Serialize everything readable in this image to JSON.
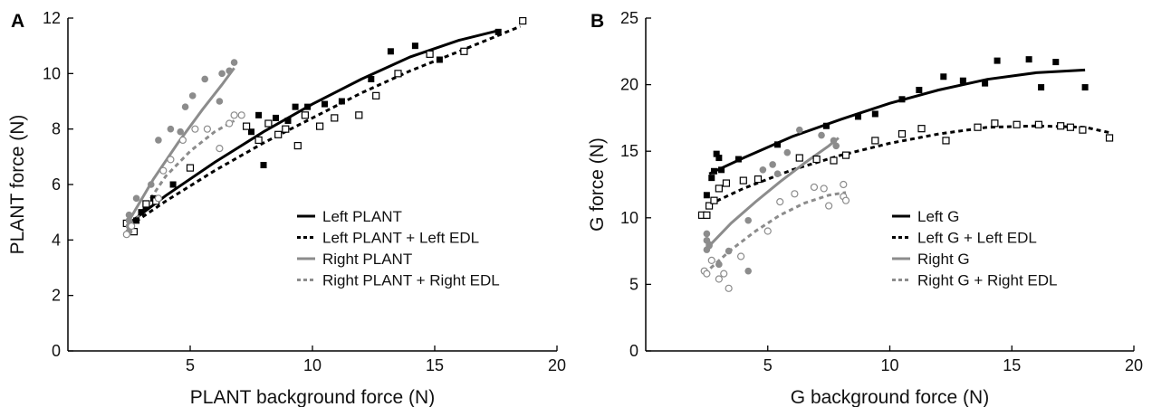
{
  "chart_data": [
    {
      "type": "scatter",
      "panel_label": "A",
      "xlabel": "PLANT background force (N)",
      "ylabel": "PLANT force (N)",
      "xlim": [
        0,
        20
      ],
      "ylim": [
        0,
        12
      ],
      "xticks": [
        "5",
        "10",
        "15",
        "20"
      ],
      "yticks": [
        "0",
        "2",
        "4",
        "6",
        "8",
        "10",
        "12"
      ],
      "legend_position": "lower-right",
      "series": [
        {
          "name": "Left PLANT",
          "color": "#000000",
          "line_style": "solid",
          "marker": "filled-square",
          "points": [
            [
              2.6,
              4.4
            ],
            [
              2.8,
              4.7
            ],
            [
              3.0,
              5.0
            ],
            [
              3.2,
              5.2
            ],
            [
              3.5,
              5.5
            ],
            [
              4.3,
              6.0
            ],
            [
              7.5,
              7.9
            ],
            [
              7.8,
              8.5
            ],
            [
              8.0,
              6.7
            ],
            [
              8.5,
              8.4
            ],
            [
              9.0,
              8.3
            ],
            [
              9.3,
              8.8
            ],
            [
              9.8,
              8.8
            ],
            [
              10.5,
              8.9
            ],
            [
              11.2,
              9.0
            ],
            [
              12.4,
              9.8
            ],
            [
              13.2,
              10.8
            ],
            [
              14.2,
              11.0
            ],
            [
              15.2,
              10.5
            ],
            [
              17.6,
              11.5
            ]
          ],
          "fit_curve": [
            [
              2.5,
              4.6
            ],
            [
              4.0,
              5.6
            ],
            [
              6.0,
              6.8
            ],
            [
              8.0,
              7.9
            ],
            [
              10.0,
              8.9
            ],
            [
              12.0,
              9.8
            ],
            [
              14.0,
              10.6
            ],
            [
              16.0,
              11.2
            ],
            [
              17.6,
              11.55
            ]
          ]
        },
        {
          "name": "Left PLANT + Left EDL",
          "color": "#000000",
          "line_style": "dashed",
          "marker": "open-square",
          "points": [
            [
              2.4,
              4.6
            ],
            [
              2.7,
              4.3
            ],
            [
              3.2,
              5.3
            ],
            [
              3.6,
              5.4
            ],
            [
              5.0,
              6.6
            ],
            [
              7.3,
              8.1
            ],
            [
              7.8,
              7.6
            ],
            [
              8.2,
              8.2
            ],
            [
              8.6,
              7.8
            ],
            [
              8.9,
              8.0
            ],
            [
              9.4,
              7.4
            ],
            [
              9.7,
              8.5
            ],
            [
              10.3,
              8.1
            ],
            [
              10.9,
              8.4
            ],
            [
              11.9,
              8.5
            ],
            [
              12.6,
              9.2
            ],
            [
              13.5,
              10.0
            ],
            [
              14.8,
              10.7
            ],
            [
              16.2,
              10.8
            ],
            [
              18.6,
              11.9
            ]
          ],
          "fit_curve": [
            [
              2.5,
              4.5
            ],
            [
              4.0,
              5.4
            ],
            [
              6.0,
              6.5
            ],
            [
              8.0,
              7.5
            ],
            [
              10.0,
              8.4
            ],
            [
              12.0,
              9.3
            ],
            [
              14.0,
              10.1
            ],
            [
              16.0,
              10.8
            ],
            [
              18.5,
              11.7
            ]
          ]
        },
        {
          "name": "Right PLANT",
          "color": "#8c8c8c",
          "line_style": "solid",
          "marker": "filled-circle",
          "points": [
            [
              2.5,
              4.9
            ],
            [
              2.5,
              4.7
            ],
            [
              2.5,
              4.5
            ],
            [
              2.5,
              4.3
            ],
            [
              2.8,
              5.5
            ],
            [
              3.4,
              6.0
            ],
            [
              3.7,
              7.6
            ],
            [
              4.2,
              8.0
            ],
            [
              4.6,
              7.9
            ],
            [
              4.8,
              8.8
            ],
            [
              5.1,
              9.2
            ],
            [
              5.6,
              9.8
            ],
            [
              6.2,
              9.0
            ],
            [
              6.3,
              10.0
            ],
            [
              6.6,
              10.1
            ],
            [
              6.8,
              10.4
            ]
          ],
          "fit_curve": [
            [
              2.5,
              4.7
            ],
            [
              3.5,
              6.2
            ],
            [
              4.5,
              7.5
            ],
            [
              5.5,
              8.7
            ],
            [
              6.3,
              9.6
            ],
            [
              6.8,
              10.2
            ]
          ]
        },
        {
          "name": "Right PLANT + Right EDL",
          "color": "#8c8c8c",
          "line_style": "dashed",
          "marker": "open-circle",
          "points": [
            [
              2.4,
              4.2
            ],
            [
              2.6,
              4.5
            ],
            [
              3.7,
              5.5
            ],
            [
              3.9,
              6.5
            ],
            [
              4.2,
              6.9
            ],
            [
              4.7,
              7.6
            ],
            [
              5.2,
              8.0
            ],
            [
              5.7,
              8.0
            ],
            [
              6.2,
              7.3
            ],
            [
              6.6,
              8.2
            ],
            [
              6.8,
              8.5
            ],
            [
              7.1,
              8.5
            ]
          ],
          "fit_curve": [
            [
              2.4,
              4.3
            ],
            [
              3.0,
              5.0
            ],
            [
              4.0,
              6.3
            ],
            [
              5.0,
              7.2
            ],
            [
              6.0,
              7.9
            ],
            [
              6.8,
              8.3
            ]
          ]
        }
      ]
    },
    {
      "type": "scatter",
      "panel_label": "B",
      "xlabel": "G background force (N)",
      "ylabel": "G force (N)",
      "xlim": [
        0,
        20
      ],
      "ylim": [
        0,
        25
      ],
      "xticks": [
        "5",
        "10",
        "15",
        "20"
      ],
      "yticks": [
        "0",
        "5",
        "10",
        "15",
        "20",
        "25"
      ],
      "legend_position": "lower-right",
      "series": [
        {
          "name": "Left G",
          "color": "#000000",
          "line_style": "solid",
          "marker": "filled-square",
          "points": [
            [
              2.5,
              11.7
            ],
            [
              2.7,
              13.0
            ],
            [
              2.8,
              13.5
            ],
            [
              2.9,
              14.8
            ],
            [
              3.0,
              14.5
            ],
            [
              3.1,
              13.6
            ],
            [
              3.8,
              14.4
            ],
            [
              5.4,
              15.5
            ],
            [
              7.4,
              16.9
            ],
            [
              8.7,
              17.6
            ],
            [
              9.4,
              17.8
            ],
            [
              10.5,
              18.9
            ],
            [
              11.2,
              19.6
            ],
            [
              12.2,
              20.6
            ],
            [
              13.0,
              20.3
            ],
            [
              13.9,
              20.1
            ],
            [
              14.4,
              21.8
            ],
            [
              15.7,
              21.9
            ],
            [
              16.2,
              19.8
            ],
            [
              16.8,
              21.7
            ],
            [
              18.0,
              19.8
            ]
          ],
          "fit_curve": [
            [
              2.6,
              13.3
            ],
            [
              4.0,
              14.5
            ],
            [
              6.0,
              16.1
            ],
            [
              8.0,
              17.4
            ],
            [
              10.0,
              18.6
            ],
            [
              12.0,
              19.6
            ],
            [
              14.0,
              20.4
            ],
            [
              16.0,
              20.9
            ],
            [
              18.0,
              21.1
            ]
          ]
        },
        {
          "name": "Left G + Left EDL",
          "color": "#000000",
          "line_style": "dashed",
          "marker": "open-square",
          "points": [
            [
              2.3,
              10.2
            ],
            [
              2.5,
              10.2
            ],
            [
              2.6,
              10.9
            ],
            [
              2.8,
              11.3
            ],
            [
              3.0,
              12.2
            ],
            [
              3.3,
              12.6
            ],
            [
              4.0,
              12.8
            ],
            [
              4.6,
              12.9
            ],
            [
              6.3,
              14.5
            ],
            [
              7.0,
              14.4
            ],
            [
              7.7,
              14.3
            ],
            [
              8.2,
              14.7
            ],
            [
              9.4,
              15.8
            ],
            [
              10.5,
              16.3
            ],
            [
              11.3,
              16.7
            ],
            [
              12.3,
              15.8
            ],
            [
              13.6,
              16.8
            ],
            [
              14.3,
              17.1
            ],
            [
              15.2,
              17.0
            ],
            [
              16.1,
              17.0
            ],
            [
              17.0,
              16.9
            ],
            [
              17.4,
              16.8
            ],
            [
              17.9,
              16.6
            ],
            [
              19.0,
              16.0
            ]
          ],
          "fit_curve": [
            [
              2.6,
              11.0
            ],
            [
              4.0,
              12.2
            ],
            [
              6.0,
              13.6
            ],
            [
              8.0,
              14.7
            ],
            [
              10.0,
              15.6
            ],
            [
              12.0,
              16.3
            ],
            [
              14.0,
              16.8
            ],
            [
              16.0,
              16.9
            ],
            [
              18.0,
              16.8
            ],
            [
              19.0,
              16.4
            ]
          ]
        },
        {
          "name": "Right G",
          "color": "#8c8c8c",
          "line_style": "solid",
          "marker": "filled-circle",
          "points": [
            [
              2.5,
              8.8
            ],
            [
              2.5,
              8.3
            ],
            [
              2.5,
              7.6
            ],
            [
              2.6,
              8.0
            ],
            [
              2.6,
              7.9
            ],
            [
              3.0,
              6.5
            ],
            [
              3.4,
              7.5
            ],
            [
              4.2,
              9.8
            ],
            [
              4.2,
              6.0
            ],
            [
              4.8,
              13.6
            ],
            [
              5.2,
              14.0
            ],
            [
              5.4,
              13.3
            ],
            [
              5.8,
              14.9
            ],
            [
              6.3,
              16.6
            ],
            [
              7.2,
              16.2
            ],
            [
              7.7,
              15.8
            ],
            [
              7.8,
              15.4
            ]
          ],
          "fit_curve": [
            [
              2.5,
              7.7
            ],
            [
              3.5,
              9.6
            ],
            [
              4.5,
              11.2
            ],
            [
              5.5,
              12.7
            ],
            [
              6.5,
              14.1
            ],
            [
              7.5,
              15.4
            ],
            [
              7.9,
              16.0
            ]
          ]
        },
        {
          "name": "Right G + Right EDL",
          "color": "#8c8c8c",
          "line_style": "dashed",
          "marker": "open-circle",
          "points": [
            [
              2.4,
              6.0
            ],
            [
              2.5,
              5.8
            ],
            [
              2.7,
              6.8
            ],
            [
              3.0,
              5.4
            ],
            [
              3.2,
              5.8
            ],
            [
              3.4,
              4.7
            ],
            [
              3.9,
              7.1
            ],
            [
              5.0,
              9.0
            ],
            [
              5.5,
              11.2
            ],
            [
              6.1,
              11.8
            ],
            [
              6.9,
              12.3
            ],
            [
              7.3,
              12.2
            ],
            [
              7.5,
              10.9
            ],
            [
              8.1,
              12.5
            ],
            [
              8.1,
              11.6
            ],
            [
              8.2,
              11.3
            ]
          ],
          "fit_curve": [
            [
              2.4,
              5.8
            ],
            [
              3.5,
              7.6
            ],
            [
              4.5,
              9.0
            ],
            [
              5.5,
              10.2
            ],
            [
              6.5,
              11.1
            ],
            [
              7.5,
              11.7
            ],
            [
              8.2,
              11.9
            ]
          ]
        }
      ]
    }
  ]
}
